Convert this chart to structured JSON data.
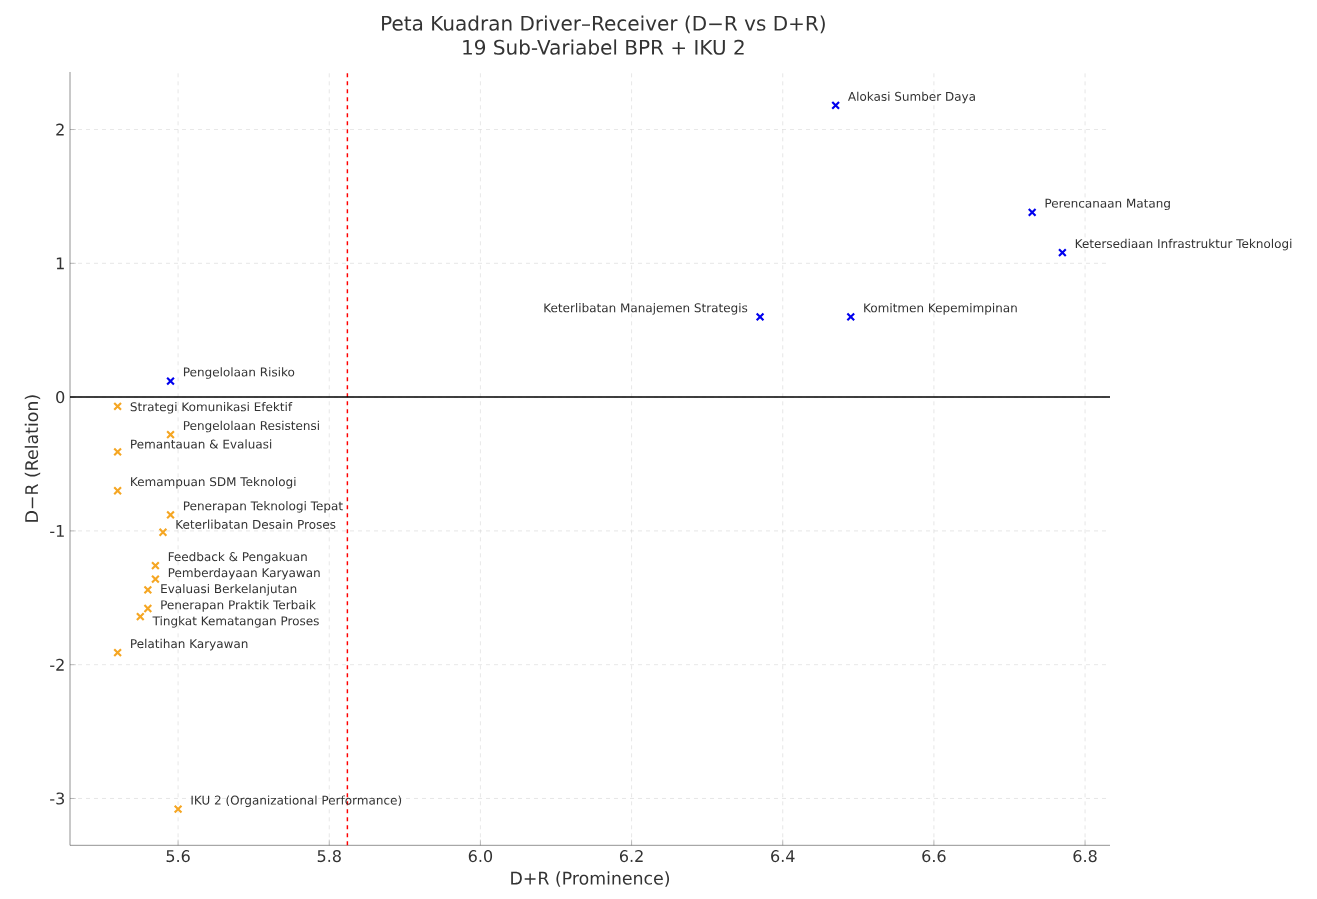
{
  "chart_data": {
    "type": "scatter",
    "title": "Peta Kuadran Driver–Receiver (D−R vs D+R)",
    "subtitle": "19 Sub-Variabel BPR + IKU 2",
    "xlabel": "D+R (Prominence)",
    "ylabel": "D−R (Relation)",
    "series": [
      {
        "color": "#0000ee",
        "x": [
          6.47,
          6.73,
          6.77,
          6.37,
          6.49,
          5.59
        ],
        "values": [
          2.18,
          1.38,
          1.08,
          0.6,
          0.6,
          0.12
        ]
      },
      {
        "color": "#f5a623",
        "x": [
          5.52,
          5.59,
          5.52,
          5.52,
          5.59,
          5.58,
          5.57,
          5.57,
          5.56,
          5.56,
          5.55,
          5.52,
          5.6
        ],
        "values": [
          -0.07,
          -0.28,
          -0.41,
          -0.7,
          -0.88,
          -1.01,
          -1.26,
          -1.36,
          -1.44,
          -1.58,
          -1.64,
          -1.91,
          -3.08
        ]
      }
    ],
    "annotations": [
      {
        "text": "Alokasi Sumber Daya",
        "x": 6.47,
        "y": 2.18
      },
      {
        "text": "Perencanaan Matang",
        "x": 6.73,
        "y": 1.38
      },
      {
        "text": "Ketersediaan Infrastruktur Teknologi",
        "x": 6.77,
        "y": 1.08
      },
      {
        "text": "Keterlibatan Manajemen Strategis",
        "x": 6.37,
        "y": 0.6
      },
      {
        "text": "Komitmen Kepemimpinan",
        "x": 6.49,
        "y": 0.6
      },
      {
        "text": "Pengelolaan Risiko",
        "x": 5.59,
        "y": 0.12
      },
      {
        "text": "Strategi Komunikasi Efektif",
        "x": 5.52,
        "y": -0.07
      },
      {
        "text": "Pengelolaan Resistensi",
        "x": 5.59,
        "y": -0.28
      },
      {
        "text": "Pemantauan & Evaluasi",
        "x": 5.52,
        "y": -0.41
      },
      {
        "text": "Kemampuan SDM Teknologi",
        "x": 5.52,
        "y": -0.7
      },
      {
        "text": "Penerapan Teknologi Tepat",
        "x": 5.59,
        "y": -0.88
      },
      {
        "text": "Keterlibatan Desain Proses",
        "x": 5.58,
        "y": -1.01
      },
      {
        "text": "Feedback & Pengakuan",
        "x": 5.57,
        "y": -1.26
      },
      {
        "text": "Pemberdayaan Karyawan",
        "x": 5.57,
        "y": -1.36
      },
      {
        "text": "Evaluasi Berkelanjutan",
        "x": 5.56,
        "y": -1.44
      },
      {
        "text": "Penerapan Praktik Terbaik",
        "x": 5.56,
        "y": -1.58
      },
      {
        "text": "Tingkat Kematangan Proses",
        "x": 5.55,
        "y": -1.64
      },
      {
        "text": "Pelatihan Karyawan",
        "x": 5.52,
        "y": -1.91
      },
      {
        "text": "IKU 2 (Organizational Performance)",
        "x": 5.6,
        "y": -3.08
      }
    ],
    "ref_lines": [
      {
        "axis": "x",
        "value": 5.824,
        "color": "#ff0000",
        "line_style": "dashed"
      },
      {
        "axis": "y",
        "value": 0,
        "color": "#000000",
        "line_style": "solid"
      }
    ],
    "xlim": [
      5.457,
      6.833
    ],
    "ylim": [
      -3.35,
      2.43
    ],
    "xticks": [
      5.6,
      5.8,
      {
        "value": 6.0,
        "label": "6.0"
      },
      6.2,
      6.4,
      6.6,
      6.8
    ],
    "yticks": [
      -3,
      -2,
      -1,
      0,
      1,
      2
    ],
    "grid": true,
    "marker": "cross"
  }
}
